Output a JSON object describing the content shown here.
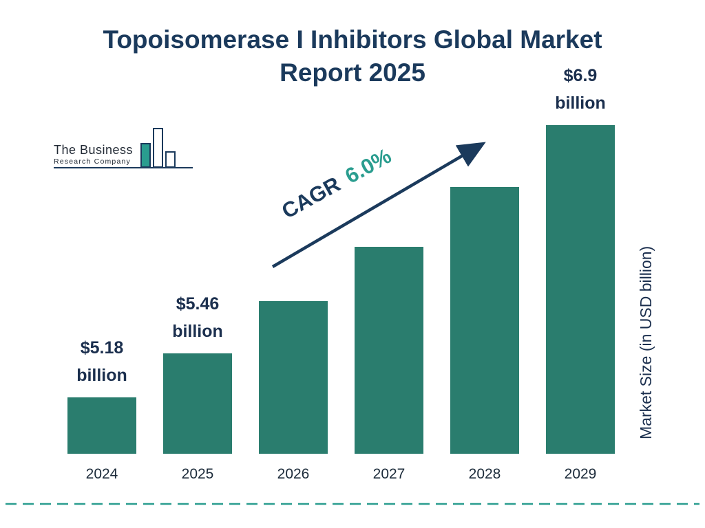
{
  "title": {
    "line1": "Topoisomerase I Inhibitors Global Market",
    "line2": "Report 2025"
  },
  "logo": {
    "name_line1": "The Business",
    "name_line2": "Research Company"
  },
  "annotation": {
    "cagr_label": "CAGR",
    "cagr_value": "6.0%"
  },
  "colors": {
    "bar_color": "#2a7d6e",
    "navy": "#1b3a5c",
    "teal_accent": "#2a9d8f"
  },
  "chart_data": {
    "type": "bar",
    "title": "Topoisomerase I Inhibitors Global Market Report 2025",
    "ylabel": "Market Size (in USD billion)",
    "xlabel": "",
    "categories": [
      "2024",
      "2025",
      "2026",
      "2027",
      "2028",
      "2029"
    ],
    "values": [
      5.18,
      5.46,
      5.79,
      6.13,
      6.51,
      6.9
    ],
    "value_labels_visible": [
      "$5.18 billion",
      "$5.46 billion",
      null,
      null,
      null,
      "$6.9 billion"
    ],
    "points": [
      {
        "year": "2024",
        "value": 5.18,
        "amount": "$5.18",
        "unit": "billion"
      },
      {
        "year": "2025",
        "value": 5.46,
        "amount": "$5.46",
        "unit": "billion"
      },
      {
        "year": "2026",
        "value": 5.79,
        "amount": null,
        "unit": null
      },
      {
        "year": "2027",
        "value": 6.13,
        "amount": null,
        "unit": null
      },
      {
        "year": "2028",
        "value": 6.51,
        "amount": null,
        "unit": null
      },
      {
        "year": "2029",
        "value": 6.9,
        "amount": "$6.9",
        "unit": "billion"
      }
    ],
    "cagr": "6.0%",
    "legend": null,
    "grid": false,
    "ylim_implied": [
      5.0,
      7.0
    ]
  }
}
